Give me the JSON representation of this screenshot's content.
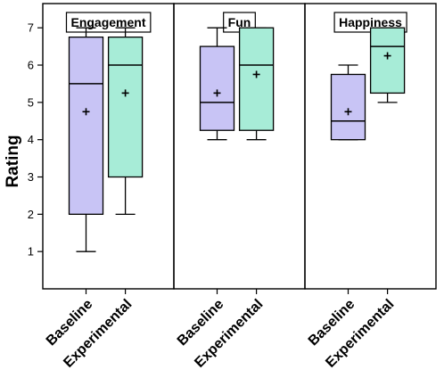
{
  "chart_data": {
    "type": "box",
    "ylabel": "Rating",
    "ylim": [
      0,
      7.65
    ],
    "yticks": [
      1,
      2,
      3,
      4,
      5,
      6,
      7
    ],
    "categories": [
      "Baseline",
      "Experimental"
    ],
    "colors": {
      "Baseline": "#c8c4f5",
      "Experimental": "#a7ecd7"
    },
    "panels": [
      {
        "title": "Engagement",
        "boxes": [
          {
            "category": "Baseline",
            "min": 1,
            "q1": 2,
            "median": 5.5,
            "q3": 6.75,
            "max": 7,
            "mean": 4.75
          },
          {
            "category": "Experimental",
            "min": 2,
            "q1": 3,
            "median": 6,
            "q3": 6.75,
            "max": 7,
            "mean": 5.25
          }
        ]
      },
      {
        "title": "Fun",
        "boxes": [
          {
            "category": "Baseline",
            "min": 4,
            "q1": 4.25,
            "median": 5,
            "q3": 6.5,
            "max": 7,
            "mean": 5.25
          },
          {
            "category": "Experimental",
            "min": 4,
            "q1": 4.25,
            "median": 6,
            "q3": 7,
            "max": 7,
            "mean": 5.75
          }
        ]
      },
      {
        "title": "Happiness",
        "boxes": [
          {
            "category": "Baseline",
            "min": 4,
            "q1": 4,
            "median": 4.5,
            "q3": 5.75,
            "max": 6,
            "mean": 4.75
          },
          {
            "category": "Experimental",
            "min": 5,
            "q1": 5.25,
            "median": 6.5,
            "q3": 7,
            "max": 7,
            "mean": 6.25
          }
        ]
      }
    ]
  }
}
